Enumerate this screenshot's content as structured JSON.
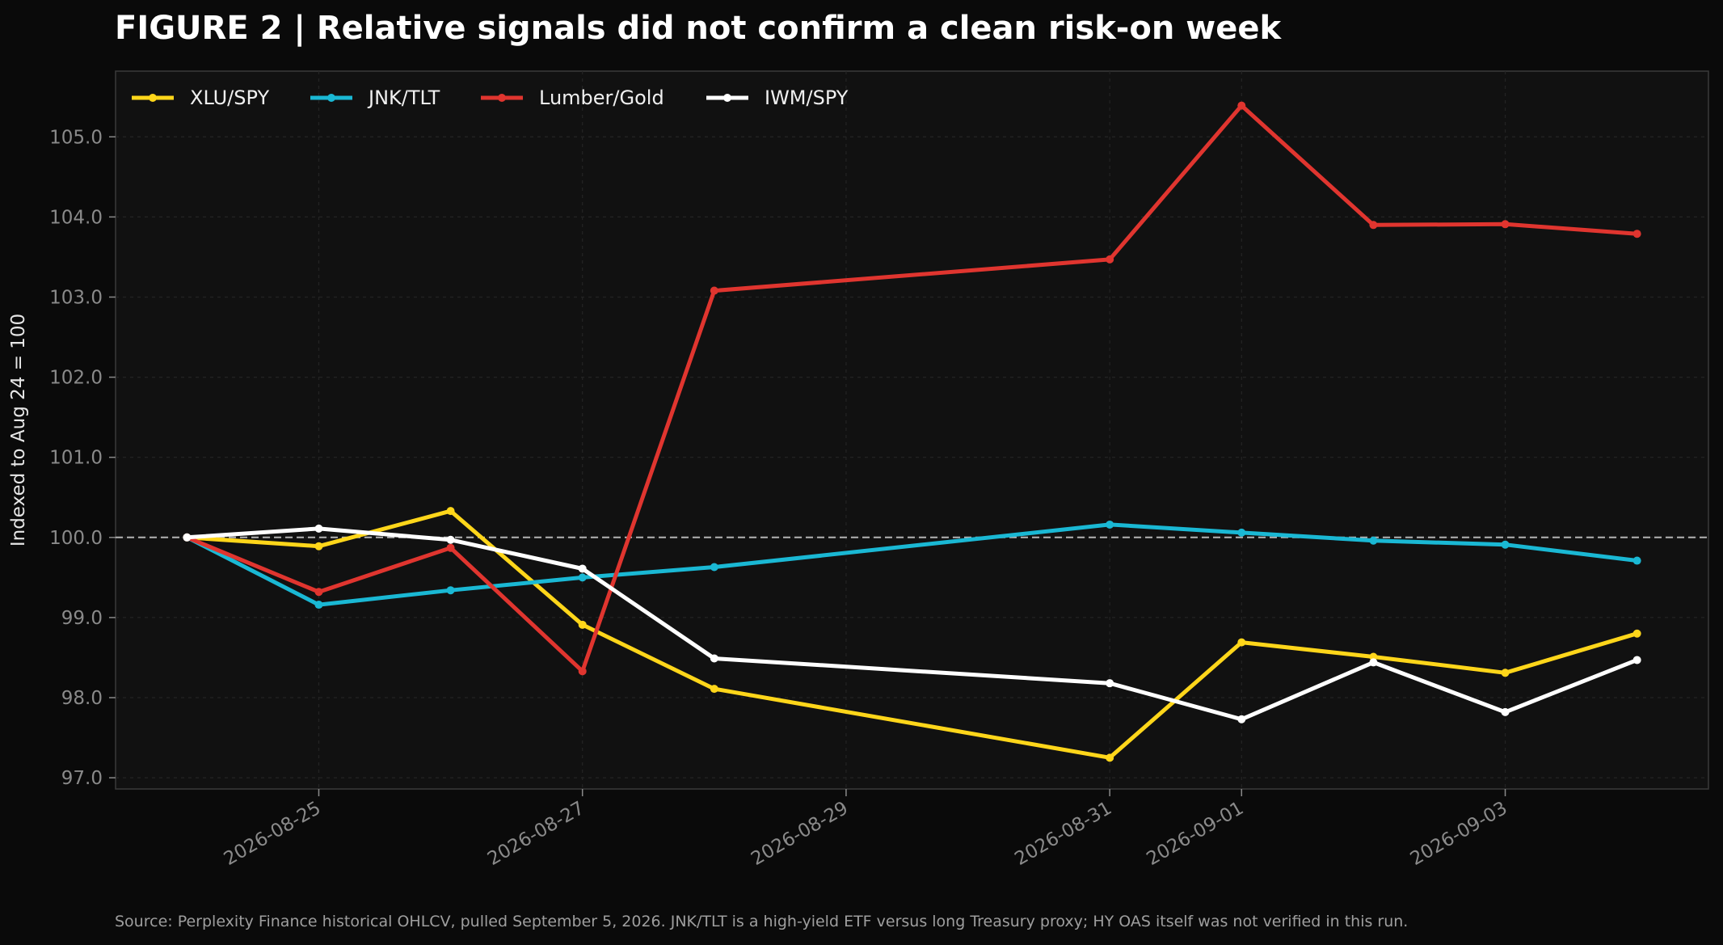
{
  "header": {
    "title": "FIGURE 2 | Relative signals did not confirm a clean risk-on week"
  },
  "footer": {
    "source": "Source: Perplexity Finance historical OHLCV, pulled September 5, 2026. JNK/TLT is a high-yield ETF versus long Treasury proxy; HY OAS itself was not verified in this run."
  },
  "chart_data": {
    "type": "line",
    "title": "FIGURE 2 | Relative signals did not confirm a clean risk-on week",
    "xlabel": "",
    "ylabel": "Indexed to Aug 24 = 100",
    "x": [
      "2026-08-24",
      "2026-08-25",
      "2026-08-26",
      "2026-08-27",
      "2026-08-28",
      "2026-08-31",
      "2026-09-01",
      "2026-09-02",
      "2026-09-03",
      "2026-09-04"
    ],
    "x_ticks": [
      "2026-08-25",
      "2026-08-27",
      "2026-08-29",
      "2026-08-31",
      "2026-09-01",
      "2026-09-03"
    ],
    "y_ticks": [
      "97.0",
      "98.0",
      "99.0",
      "100.0",
      "101.0",
      "102.0",
      "103.0",
      "104.0",
      "105.0"
    ],
    "xlim": [
      "2026-08-23 11:00",
      "2026-09-04 13:00"
    ],
    "ylim": [
      96.86,
      105.82
    ],
    "reference_line": 100.0,
    "grid": true,
    "legend_position": "top-left",
    "background": "#111111",
    "series": [
      {
        "name": "XLU/SPY",
        "color": "#ffd61a",
        "values": [
          100.0,
          99.89,
          100.33,
          98.91,
          98.11,
          97.25,
          98.69,
          98.51,
          98.31,
          98.8
        ]
      },
      {
        "name": "JNK/TLT",
        "color": "#1ab8d4",
        "values": [
          100.0,
          99.16,
          99.34,
          99.5,
          99.63,
          100.16,
          100.06,
          99.96,
          99.91,
          99.71
        ]
      },
      {
        "name": "Lumber/Gold",
        "color": "#e0352f",
        "values": [
          100.0,
          99.32,
          99.87,
          98.33,
          103.08,
          103.47,
          105.39,
          103.9,
          103.91,
          103.79
        ]
      },
      {
        "name": "IWM/SPY",
        "color": "#ffffff",
        "values": [
          100.0,
          100.11,
          99.97,
          99.61,
          98.49,
          98.18,
          97.73,
          98.44,
          97.82,
          98.47
        ]
      }
    ]
  }
}
